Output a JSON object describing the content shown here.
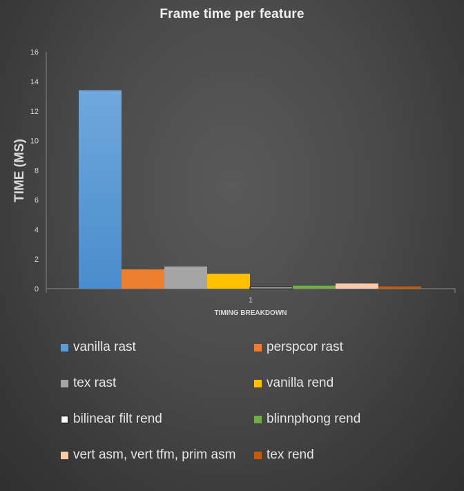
{
  "chart_data": {
    "type": "bar",
    "title": "Frame time per feature",
    "xlabel": "TIMING BREAKDOWN",
    "ylabel": "TIME (MS)",
    "categories": [
      "1"
    ],
    "ylim": [
      0,
      16
    ],
    "yticks": [
      0,
      2,
      4,
      6,
      8,
      10,
      12,
      14,
      16
    ],
    "grid": false,
    "legend_position": "bottom",
    "series": [
      {
        "name": "vanilla rast",
        "values": [
          13.4
        ],
        "color": "#5b9bd5"
      },
      {
        "name": "perspcor rast",
        "values": [
          1.3
        ],
        "color": "#ed7d31"
      },
      {
        "name": "tex rast",
        "values": [
          1.5
        ],
        "color": "#a5a5a5"
      },
      {
        "name": "vanilla rend",
        "values": [
          1.0
        ],
        "color": "#ffc000"
      },
      {
        "name": "bilinear filt rend",
        "values": [
          0.1
        ],
        "color": "#ffffff",
        "border": "#000000"
      },
      {
        "name": "blinnphong rend",
        "values": [
          0.2
        ],
        "color": "#70ad47"
      },
      {
        "name": "vert asm, vert tfm, prim asm",
        "values": [
          0.35
        ],
        "color": "#f8cbad"
      },
      {
        "name": "tex rend",
        "values": [
          0.15
        ],
        "color": "#c55a11"
      }
    ]
  }
}
